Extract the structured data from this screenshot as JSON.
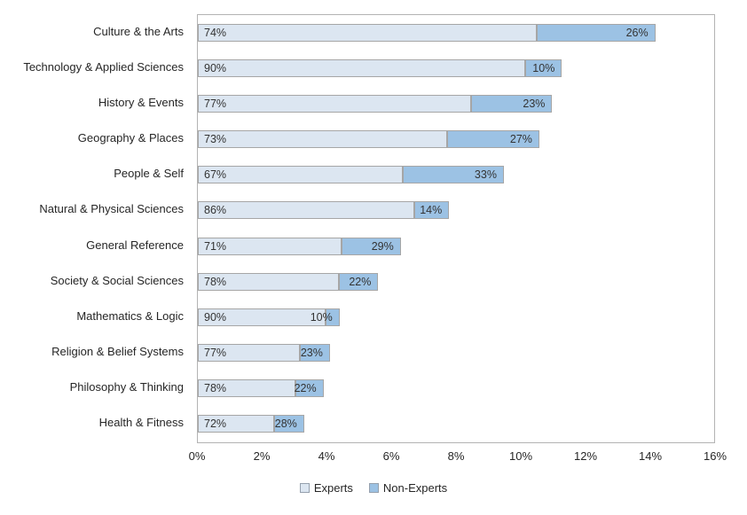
{
  "chart_data": {
    "type": "bar",
    "orientation": "horizontal",
    "stacked": true,
    "title": "",
    "categories": [
      "Culture & the Arts",
      "Technology & Applied Sciences",
      "History & Events",
      "Geography & Places",
      "People & Self",
      "Natural & Physical Sciences",
      "General Reference",
      "Society & Social Sciences",
      "Mathematics & Logic",
      "Religion & Belief Systems",
      "Philosophy & Thinking",
      "Health & Fitness"
    ],
    "series": [
      {
        "name": "Experts",
        "color": "#dce6f1",
        "label_position": "inside-start",
        "values": [
          74,
          90,
          77,
          73,
          67,
          86,
          71,
          78,
          90,
          77,
          78,
          72
        ]
      },
      {
        "name": "Non-Experts",
        "color": "#9cc2e4",
        "label_position": "inside-end",
        "values": [
          26,
          10,
          23,
          27,
          33,
          14,
          29,
          22,
          10,
          23,
          22,
          28
        ]
      }
    ],
    "bar_total_axis_pct": [
      14.2,
      11.3,
      11.0,
      10.6,
      9.5,
      7.8,
      6.3,
      5.6,
      4.4,
      4.1,
      3.9,
      3.3
    ],
    "xlim": [
      0,
      16
    ],
    "x_tick_labels": [
      "0%",
      "2%",
      "4%",
      "6%",
      "8%",
      "10%",
      "12%",
      "14%",
      "16%"
    ],
    "value_suffix": "%",
    "grid": false,
    "legend_position": "bottom",
    "plot_border_color": "#b3b3b3",
    "segment_border_color": "#a6a6a6"
  }
}
